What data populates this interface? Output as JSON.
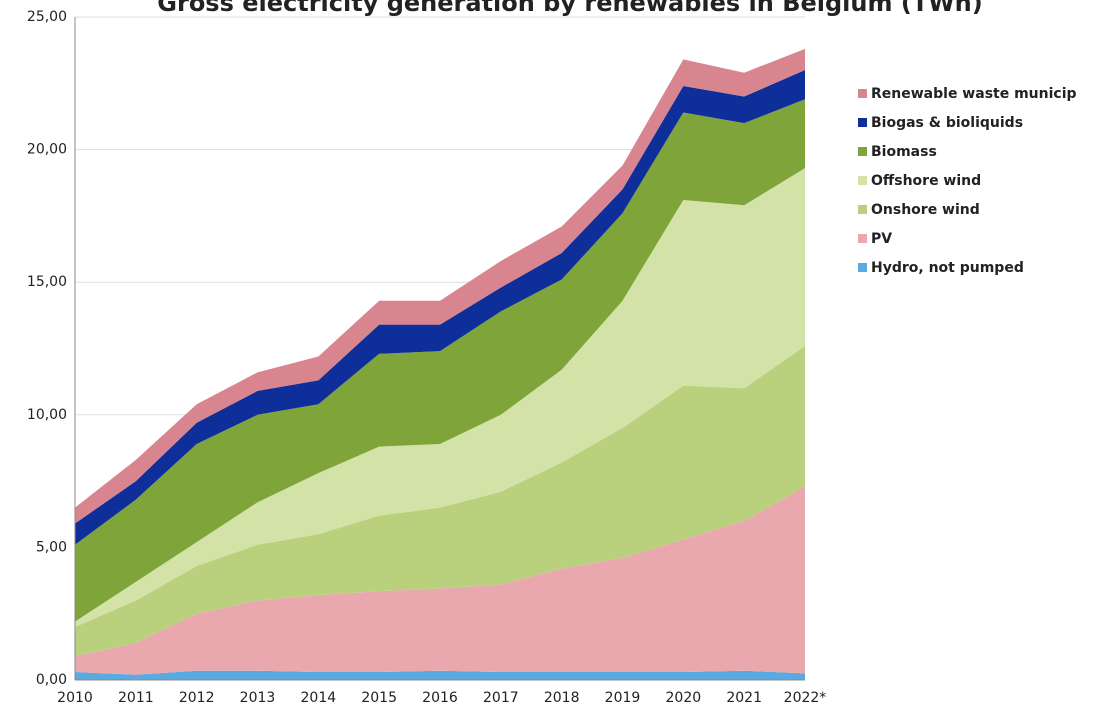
{
  "chart_data": {
    "type": "area",
    "stacked": true,
    "title": "Gross electricity generation by renewables in Belgium (TWh)",
    "categories": [
      "2010",
      "2011",
      "2012",
      "2013",
      "2014",
      "2015",
      "2016",
      "2017",
      "2018",
      "2019",
      "2020",
      "2021",
      "2022*"
    ],
    "series": [
      {
        "name": "Hydro, not pumped",
        "color": "#5aa9e0",
        "values": [
          0.3,
          0.2,
          0.35,
          0.35,
          0.3,
          0.3,
          0.35,
          0.3,
          0.3,
          0.3,
          0.3,
          0.35,
          0.25
        ]
      },
      {
        "name": "PV",
        "color": "#e9a8ae",
        "values": [
          0.6,
          1.2,
          2.15,
          2.65,
          2.9,
          3.05,
          3.1,
          3.3,
          3.9,
          4.3,
          5.0,
          5.65,
          7.05
        ]
      },
      {
        "name": "Onshore wind",
        "color": "#b9d17c",
        "values": [
          1.1,
          1.6,
          1.8,
          2.1,
          2.3,
          2.85,
          3.05,
          3.5,
          4.0,
          4.9,
          5.8,
          5.0,
          5.3
        ]
      },
      {
        "name": "Offshore wind",
        "color": "#d3e3a8",
        "values": [
          0.2,
          0.7,
          0.9,
          1.6,
          2.3,
          2.6,
          2.4,
          2.9,
          3.5,
          4.8,
          7.0,
          6.9,
          6.7
        ]
      },
      {
        "name": "Biomass",
        "color": "#7fa53a",
        "values": [
          2.9,
          3.1,
          3.7,
          3.3,
          2.6,
          3.5,
          3.5,
          3.9,
          3.4,
          3.3,
          3.3,
          3.1,
          2.6
        ]
      },
      {
        "name": "Biogas & bioliquids",
        "color": "#0e2f9a",
        "values": [
          0.8,
          0.7,
          0.8,
          0.9,
          0.9,
          1.1,
          1.0,
          0.9,
          1.0,
          0.9,
          1.0,
          1.0,
          1.1
        ]
      },
      {
        "name": "Renewable waste municip",
        "color": "#d9858f",
        "values": [
          0.6,
          0.8,
          0.7,
          0.7,
          0.9,
          0.9,
          0.9,
          1.0,
          1.0,
          0.9,
          1.0,
          0.9,
          0.8
        ]
      }
    ],
    "ylim": [
      0,
      25
    ],
    "yticks": [
      {
        "value": 0,
        "label": "0,00"
      },
      {
        "value": 5,
        "label": "5,00"
      },
      {
        "value": 10,
        "label": "10,00"
      },
      {
        "value": 15,
        "label": "15,00"
      },
      {
        "value": 20,
        "label": "20,00"
      },
      {
        "value": 25,
        "label": "25,00"
      }
    ],
    "grid": true,
    "legend": "right"
  }
}
